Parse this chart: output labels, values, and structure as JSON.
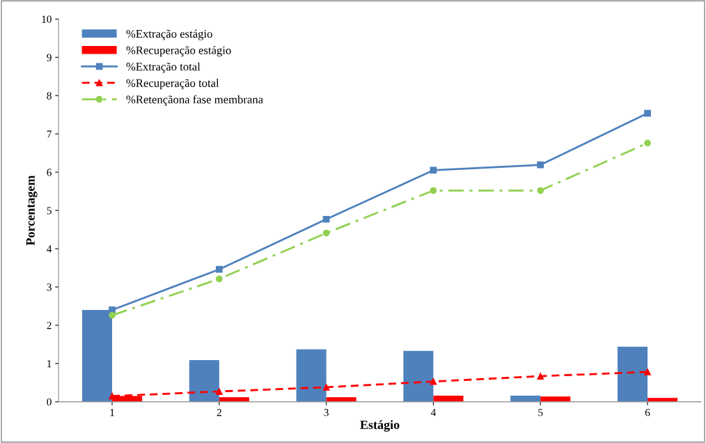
{
  "chart_data": {
    "type": "bar",
    "xlabel": "Estágio",
    "ylabel": "Porcentagem",
    "categories": [
      "1",
      "2",
      "3",
      "4",
      "5",
      "6"
    ],
    "ylim": [
      0,
      10
    ],
    "yticks": [
      0,
      1,
      2,
      3,
      4,
      5,
      6,
      7,
      8,
      9,
      10
    ],
    "grid": false,
    "legend": "top left",
    "series": [
      {
        "name": "%Extração estágio",
        "color": "#4f81bd",
        "values": [
          2.4,
          1.09,
          1.37,
          1.33,
          0.16,
          1.44
        ]
      },
      {
        "name": "%Recuperação estágio",
        "color": "#ff0000",
        "values": [
          0.15,
          0.12,
          0.12,
          0.16,
          0.14,
          0.1
        ]
      },
      {
        "name": "%Extração total",
        "type": "line",
        "color": "#4f81bd",
        "marker": "square",
        "line_style": "solid",
        "values": [
          2.4,
          3.46,
          4.77,
          6.05,
          6.19,
          7.54
        ]
      },
      {
        "name": "%Recuperação total",
        "type": "line",
        "color": "#ff0000",
        "marker": "triangle",
        "line_style": "dashed",
        "values": [
          0.15,
          0.27,
          0.38,
          0.53,
          0.67,
          0.78
        ]
      },
      {
        "name": "%Retençãona fase membrana",
        "type": "line",
        "color": "#92d050",
        "marker": "circle",
        "line_style": "dashdot",
        "values": [
          2.26,
          3.21,
          4.41,
          5.52,
          5.52,
          6.76
        ]
      }
    ]
  }
}
